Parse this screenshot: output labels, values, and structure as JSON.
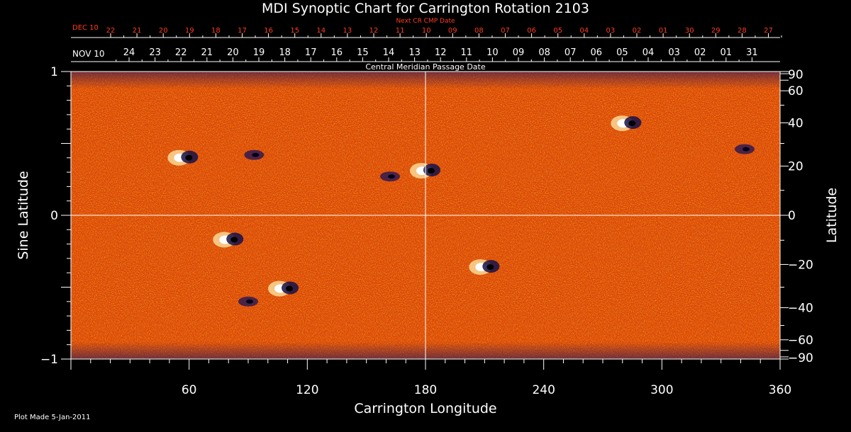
{
  "title": "MDI Synoptic Chart for Carrington Rotation 2103",
  "top_axis_red_label": "Next CR CMP Date",
  "top_axis_red_start": "DEC 10",
  "top_axis_red_ticks": [
    "22",
    "21",
    "20",
    "19",
    "18",
    "17",
    "16",
    "15",
    "14",
    "13",
    "12",
    "11",
    "10",
    "09",
    "08",
    "07",
    "06",
    "05",
    "04",
    "03",
    "02",
    "01",
    "30",
    "29",
    "28",
    "27"
  ],
  "top_axis_white_start": "NOV 10",
  "top_axis_white_ticks": [
    "24",
    "23",
    "22",
    "21",
    "20",
    "19",
    "18",
    "17",
    "16",
    "15",
    "14",
    "13",
    "12",
    "11",
    "10",
    "09",
    "08",
    "07",
    "06",
    "05",
    "04",
    "03",
    "02",
    "01",
    "31"
  ],
  "inner_label": "Central Meridian Passage Date",
  "xlabel": "Carrington Longitude",
  "ylabel_left": "Sine Latitude",
  "ylabel_right": "Latitude",
  "plot_made": "Plot Made  5-Jan-2011",
  "colors": {
    "background": "#000000",
    "map_base": "#d8400c",
    "red_text": "#ff3b1f",
    "axis": "#ffffff"
  },
  "chart_data": {
    "type": "heatmap",
    "title": "MDI Synoptic Chart for Carrington Rotation 2103",
    "xlabel": "Carrington Longitude",
    "ylabel": "Sine Latitude",
    "ylabel_right": "Latitude",
    "xlim": [
      0,
      360
    ],
    "ylim": [
      -1,
      1
    ],
    "x_ticks": [
      60,
      120,
      180,
      240,
      300,
      360
    ],
    "y_ticks_left": [
      "1",
      "0",
      "−1"
    ],
    "y_ticks_right": [
      "90",
      "60",
      "40",
      "20",
      "0",
      "−20",
      "−40",
      "−60",
      "−90"
    ],
    "y_ticks_right_values": [
      90,
      60,
      40,
      20,
      0,
      -20,
      -40,
      -60,
      -90
    ],
    "grid": "crosshair at longitude 180 and sine latitude 0",
    "features": [
      {
        "lon": 57,
        "sinlat": 0.4,
        "polarity": "mixed"
      },
      {
        "lon": 93,
        "sinlat": 0.42,
        "polarity": "negative"
      },
      {
        "lon": 162,
        "sinlat": 0.27,
        "polarity": "negative"
      },
      {
        "lon": 180,
        "sinlat": 0.31,
        "polarity": "mixed"
      },
      {
        "lon": 282,
        "sinlat": 0.64,
        "polarity": "mixed"
      },
      {
        "lon": 342,
        "sinlat": 0.46,
        "polarity": "negative"
      },
      {
        "lon": 80,
        "sinlat": -0.17,
        "polarity": "mixed"
      },
      {
        "lon": 108,
        "sinlat": -0.51,
        "polarity": "mixed"
      },
      {
        "lon": 90,
        "sinlat": -0.6,
        "polarity": "negative"
      },
      {
        "lon": 210,
        "sinlat": -0.36,
        "polarity": "mixed"
      }
    ]
  }
}
